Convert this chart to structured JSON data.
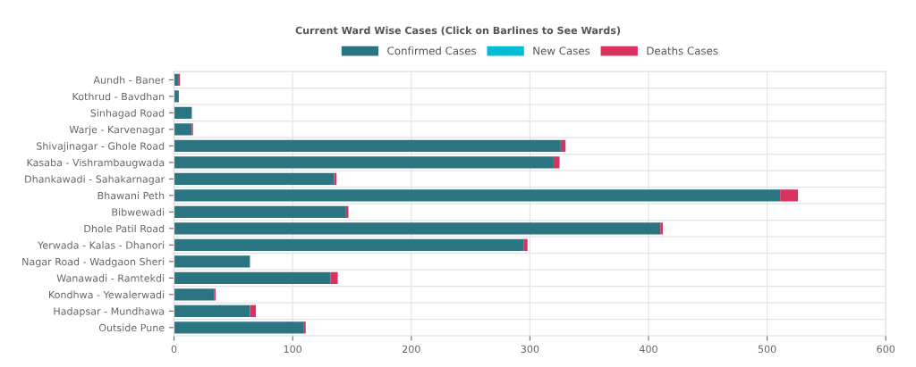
{
  "chart_data": {
    "type": "bar",
    "orientation": "horizontal",
    "stacked": true,
    "title": "Current Ward Wise Cases (Click on Barlines to See Wards)",
    "categories": [
      "Aundh - Baner",
      "Kothrud - Bavdhan",
      "Sinhagad Road",
      "Warje - Karvenagar",
      "Shivajinagar - Ghole Road",
      "Kasaba - Vishrambaugwada",
      "Dhankawadi - Sahakarnagar",
      "Bhawani Peth",
      "Bibwewadi",
      "Dhole Patil Road",
      "Yerwada - Kalas - Dhanori",
      "Nagar Road - Wadgaon Sheri",
      "Wanawadi - Ramtekdi",
      "Kondhwa - Yewalerwadi",
      "Hadapsar - Mundhawa",
      "Outside Pune"
    ],
    "series": [
      {
        "name": "Confirmed Cases",
        "color": "#2b7583",
        "values": [
          4,
          4,
          15,
          15,
          326,
          320,
          135,
          511,
          145,
          410,
          295,
          64,
          132,
          34,
          64,
          109
        ]
      },
      {
        "name": "New Cases",
        "color": "#00bcd4",
        "values": [
          0,
          0,
          0,
          0,
          0,
          0,
          0,
          0,
          0,
          0,
          0,
          0,
          0,
          0,
          0,
          0
        ]
      },
      {
        "name": "Deaths Cases",
        "color": "#d9325e",
        "values": [
          1,
          0,
          0,
          1,
          4,
          5,
          2,
          15,
          2,
          2,
          3,
          0,
          6,
          1,
          5,
          2
        ]
      }
    ],
    "xlim": [
      0,
      600
    ],
    "xticks": [
      0,
      100,
      200,
      300,
      400,
      500,
      600
    ],
    "grid": true,
    "legend": "top"
  }
}
